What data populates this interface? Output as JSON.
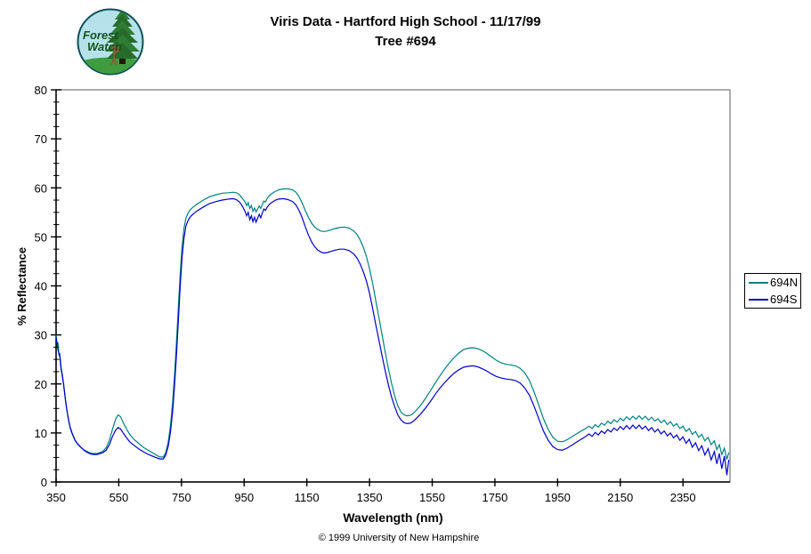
{
  "header": {
    "title_line1": "Viris Data - Hartford High School - 11/17/99",
    "title_line2": "Tree #694"
  },
  "logo": {
    "line1": "Forest",
    "line2": "Watch"
  },
  "footer": {
    "copyright": "© 1999 University of New Hampshire"
  },
  "chart_data": {
    "type": "line",
    "title": "Viris Data - Hartford High School - 11/17/99 Tree #694",
    "xlabel": "Wavelength (nm)",
    "ylabel": "% Reflectance",
    "xlim": [
      350,
      2500
    ],
    "ylim": [
      0,
      80
    ],
    "x_ticks": [
      350,
      550,
      750,
      950,
      1150,
      1350,
      1550,
      1750,
      1950,
      2150,
      2350
    ],
    "y_ticks": [
      0,
      10,
      20,
      30,
      40,
      50,
      60,
      70,
      80
    ],
    "y_minor_step": 2.5,
    "grid": false,
    "legend_position": "right-outside",
    "frame_color": "#808080",
    "axis_color": "#000000",
    "x": [
      350,
      353,
      356,
      359,
      362,
      366,
      370,
      374,
      378,
      382,
      386,
      390,
      395,
      400,
      410,
      420,
      430,
      440,
      450,
      460,
      470,
      480,
      490,
      500,
      510,
      520,
      530,
      540,
      548,
      556,
      565,
      575,
      585,
      600,
      615,
      630,
      645,
      660,
      672,
      682,
      692,
      700,
      708,
      715,
      722,
      728,
      734,
      740,
      746,
      752,
      758,
      764,
      772,
      780,
      790,
      800,
      820,
      840,
      860,
      880,
      900,
      915,
      925,
      935,
      945,
      952,
      958,
      963,
      968,
      973,
      978,
      983,
      988,
      993,
      998,
      1003,
      1008,
      1013,
      1018,
      1024,
      1030,
      1040,
      1050,
      1060,
      1075,
      1090,
      1105,
      1115,
      1125,
      1135,
      1145,
      1155,
      1165,
      1175,
      1185,
      1195,
      1205,
      1215,
      1225,
      1240,
      1255,
      1270,
      1285,
      1300,
      1310,
      1320,
      1330,
      1340,
      1350,
      1360,
      1370,
      1380,
      1390,
      1400,
      1410,
      1420,
      1430,
      1440,
      1450,
      1460,
      1470,
      1480,
      1490,
      1500,
      1515,
      1530,
      1545,
      1560,
      1575,
      1590,
      1605,
      1620,
      1635,
      1650,
      1665,
      1680,
      1695,
      1710,
      1725,
      1740,
      1755,
      1770,
      1785,
      1800,
      1815,
      1830,
      1845,
      1860,
      1875,
      1890,
      1905,
      1920,
      1935,
      1950,
      1965,
      1980,
      1995,
      2010,
      2025,
      2040,
      2050,
      2060,
      2070,
      2080,
      2090,
      2100,
      2110,
      2120,
      2130,
      2140,
      2150,
      2160,
      2170,
      2180,
      2190,
      2200,
      2210,
      2220,
      2230,
      2240,
      2250,
      2260,
      2270,
      2280,
      2290,
      2300,
      2310,
      2320,
      2330,
      2340,
      2350,
      2360,
      2370,
      2380,
      2390,
      2400,
      2410,
      2420,
      2430,
      2440,
      2450,
      2458,
      2466,
      2474,
      2482,
      2490,
      2496
    ],
    "series": [
      {
        "name": "694N",
        "color": "#008080",
        "y": [
          30.0,
          27.8,
          28.5,
          25.8,
          26.3,
          23.4,
          22.0,
          20.0,
          17.8,
          15.8,
          14.0,
          12.5,
          11.0,
          10.0,
          8.5,
          7.6,
          7.0,
          6.5,
          6.2,
          5.9,
          5.8,
          5.8,
          6.0,
          6.3,
          7.0,
          8.5,
          10.8,
          12.8,
          13.7,
          13.3,
          12.0,
          10.8,
          9.7,
          8.6,
          7.8,
          7.0,
          6.4,
          5.9,
          5.4,
          5.1,
          5.1,
          6.0,
          8.2,
          11.5,
          16.5,
          22.0,
          28.5,
          35.5,
          42.5,
          48.0,
          51.8,
          53.8,
          55.0,
          55.7,
          56.2,
          56.7,
          57.5,
          58.2,
          58.6,
          58.9,
          59.0,
          59.1,
          59.0,
          58.6,
          57.8,
          57.2,
          56.4,
          57.0,
          55.8,
          56.4,
          55.2,
          55.9,
          55.1,
          55.7,
          56.3,
          55.8,
          56.6,
          57.3,
          57.1,
          57.9,
          58.4,
          58.9,
          59.3,
          59.6,
          59.8,
          59.8,
          59.6,
          59.1,
          58.2,
          56.9,
          55.4,
          54.0,
          52.8,
          52.0,
          51.5,
          51.2,
          51.1,
          51.2,
          51.4,
          51.7,
          51.9,
          52.0,
          51.8,
          51.2,
          50.5,
          49.4,
          47.9,
          46.0,
          43.5,
          40.5,
          37.0,
          33.5,
          30.0,
          26.5,
          23.2,
          20.2,
          17.6,
          15.6,
          14.3,
          13.7,
          13.5,
          13.6,
          14.0,
          14.7,
          15.8,
          17.2,
          18.7,
          20.2,
          21.7,
          23.1,
          24.3,
          25.4,
          26.3,
          27.0,
          27.3,
          27.4,
          27.2,
          26.8,
          26.2,
          25.5,
          24.8,
          24.3,
          24.0,
          23.9,
          23.7,
          23.2,
          22.3,
          20.7,
          18.4,
          15.7,
          12.9,
          10.7,
          9.1,
          8.3,
          8.2,
          8.6,
          9.2,
          9.8,
          10.4,
          10.9,
          11.4,
          10.9,
          11.7,
          11.2,
          12.0,
          11.6,
          12.4,
          11.9,
          12.7,
          12.2,
          13.0,
          12.5,
          13.3,
          12.7,
          13.4,
          12.8,
          13.5,
          12.8,
          13.4,
          12.6,
          13.2,
          12.4,
          12.9,
          12.1,
          12.6,
          11.7,
          12.3,
          11.4,
          11.9,
          10.9,
          11.4,
          10.3,
          10.9,
          9.7,
          10.3,
          9.1,
          9.7,
          8.4,
          9.1,
          7.6,
          8.4,
          6.6,
          7.6,
          5.6,
          6.9,
          4.6,
          6.0
        ]
      },
      {
        "name": "694S",
        "color": "#0000cc",
        "y": [
          29.5,
          28.3,
          27.0,
          26.2,
          25.6,
          23.0,
          21.6,
          19.8,
          17.6,
          15.6,
          14.0,
          12.6,
          11.2,
          10.2,
          8.6,
          7.7,
          7.0,
          6.4,
          6.0,
          5.7,
          5.6,
          5.6,
          5.8,
          6.0,
          6.5,
          7.6,
          9.3,
          10.6,
          11.1,
          10.8,
          9.9,
          9.0,
          8.2,
          7.4,
          6.7,
          6.1,
          5.6,
          5.2,
          4.9,
          4.7,
          4.7,
          5.5,
          7.3,
          10.2,
          14.5,
          19.8,
          25.8,
          32.8,
          39.8,
          45.8,
          49.8,
          52.2,
          53.5,
          54.2,
          54.8,
          55.3,
          56.1,
          56.8,
          57.2,
          57.5,
          57.7,
          57.8,
          57.6,
          57.1,
          56.2,
          55.3,
          54.3,
          55.0,
          53.5,
          54.3,
          53.1,
          54.0,
          53.0,
          53.8,
          54.6,
          53.9,
          54.9,
          55.7,
          55.4,
          56.1,
          56.6,
          57.1,
          57.5,
          57.7,
          57.8,
          57.6,
          57.2,
          56.5,
          55.4,
          53.9,
          52.1,
          50.4,
          49.0,
          48.0,
          47.3,
          46.9,
          46.7,
          46.8,
          47.0,
          47.3,
          47.5,
          47.5,
          47.2,
          46.5,
          45.7,
          44.5,
          42.9,
          41.0,
          38.5,
          35.4,
          32.1,
          28.9,
          25.7,
          22.7,
          19.9,
          17.4,
          15.4,
          13.7,
          12.7,
          12.1,
          11.9,
          12.0,
          12.4,
          13.0,
          14.0,
          15.2,
          16.5,
          17.9,
          19.2,
          20.3,
          21.3,
          22.2,
          22.9,
          23.4,
          23.6,
          23.7,
          23.5,
          23.1,
          22.6,
          22.0,
          21.5,
          21.2,
          21.0,
          20.9,
          20.7,
          20.2,
          19.2,
          17.7,
          15.5,
          12.9,
          10.4,
          8.5,
          7.2,
          6.6,
          6.5,
          6.9,
          7.5,
          8.1,
          8.7,
          9.3,
          9.8,
          9.3,
          10.1,
          9.6,
          10.4,
          9.9,
          10.7,
          10.2,
          11.0,
          10.5,
          11.3,
          10.7,
          11.5,
          10.8,
          11.6,
          10.9,
          11.6,
          10.8,
          11.4,
          10.5,
          11.1,
          10.2,
          10.8,
          9.8,
          10.4,
          9.4,
          10.0,
          9.0,
          9.6,
          8.5,
          9.2,
          7.9,
          8.7,
          7.1,
          8.0,
          6.4,
          7.4,
          5.5,
          6.8,
          4.5,
          6.2,
          3.7,
          5.8,
          2.7,
          5.3,
          1.4,
          4.5
        ]
      }
    ]
  }
}
